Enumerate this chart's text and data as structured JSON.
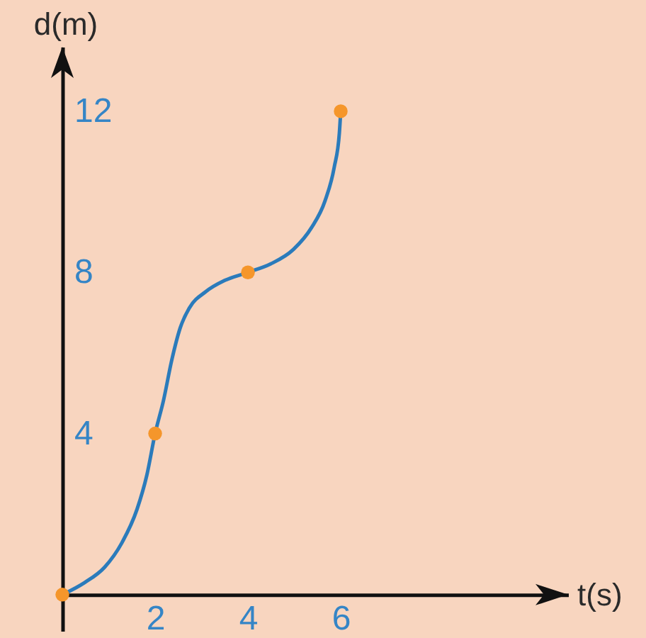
{
  "chart_data": {
    "type": "line",
    "xlabel": "t(s)",
    "ylabel": "d(m)",
    "xlim": [
      0,
      10.9
    ],
    "ylim": [
      -0.9,
      13.6
    ],
    "xticks": [
      2,
      4,
      6
    ],
    "yticks": [
      4,
      8,
      12
    ],
    "grid": false,
    "series": [
      {
        "color": "#2b7bbb",
        "line_style": "solid",
        "marker": "none",
        "x": [
          0,
          0.48,
          0.91,
          1.28,
          1.61,
          1.82,
          2,
          2.18,
          2.36,
          2.54,
          2.74,
          3.09,
          3.5,
          4,
          4.49,
          4.98,
          5.37,
          5.66,
          5.86,
          5.97,
          6
        ],
        "values": [
          0,
          0.3,
          0.68,
          1.28,
          2.12,
          2.96,
          4,
          4.82,
          5.83,
          6.62,
          7.12,
          7.52,
          7.8,
          8,
          8.21,
          8.57,
          9.11,
          9.77,
          10.61,
          11.45,
          12
        ]
      },
      {
        "type": "scatter",
        "color": "#f5962b",
        "marker": "circle",
        "x": [
          0,
          2,
          4,
          6
        ],
        "values": [
          0,
          4,
          8,
          12
        ]
      }
    ]
  }
}
